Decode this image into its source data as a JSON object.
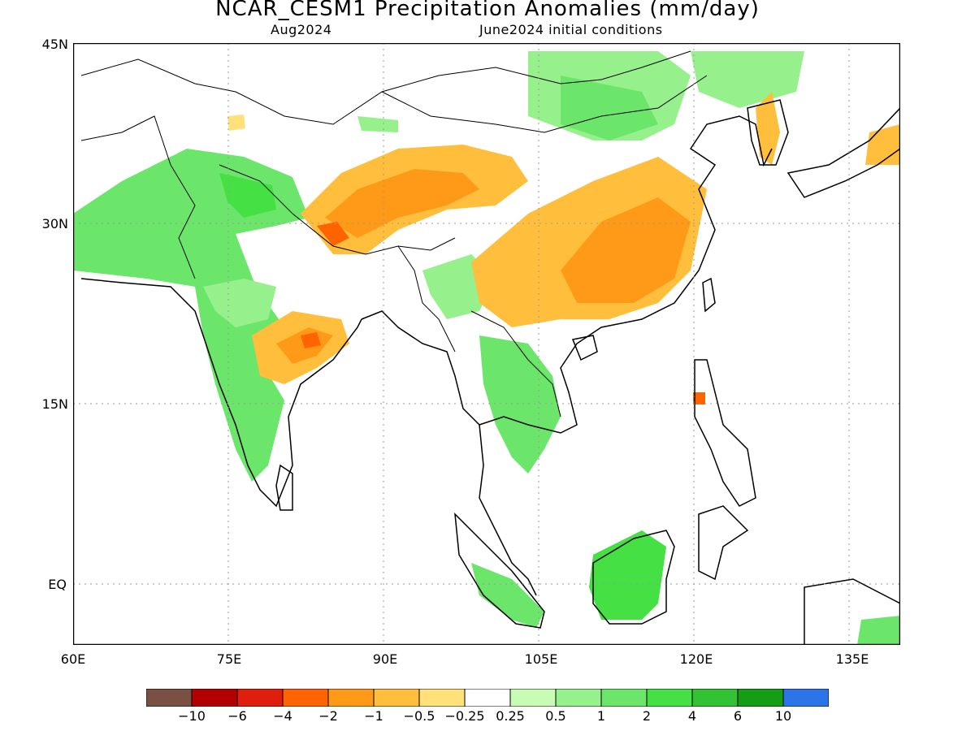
{
  "title": "NCAR_CESM1 Precipitation Anomalies (mm/day)",
  "subtitle_left": "Aug2024",
  "subtitle_right": "June2024 initial conditions",
  "axes": {
    "y_ticks": [
      "45N",
      "30N",
      "15N",
      "EQ"
    ],
    "x_ticks": [
      "60E",
      "75E",
      "90E",
      "105E",
      "120E",
      "135E"
    ],
    "lon_range": [
      60,
      140
    ],
    "lat_range": [
      -5,
      45
    ]
  },
  "legend": {
    "colors": [
      "#7a5044",
      "#b30000",
      "#e01e0e",
      "#ff6400",
      "#ff9a18",
      "#ffbe3c",
      "#ffe079",
      "#ffffff",
      "#c8fcb4",
      "#96f08c",
      "#6be66b",
      "#44e044",
      "#33c233",
      "#149e14",
      "#2c75e8"
    ],
    "labels": [
      "−10",
      "−6",
      "−4",
      "−2",
      "−1",
      "−0.5",
      "−0.25",
      "0.25",
      "0.5",
      "1",
      "2",
      "4",
      "6",
      "10"
    ]
  },
  "palette": {
    "land_line": "#000000",
    "grid": "#999999"
  }
}
